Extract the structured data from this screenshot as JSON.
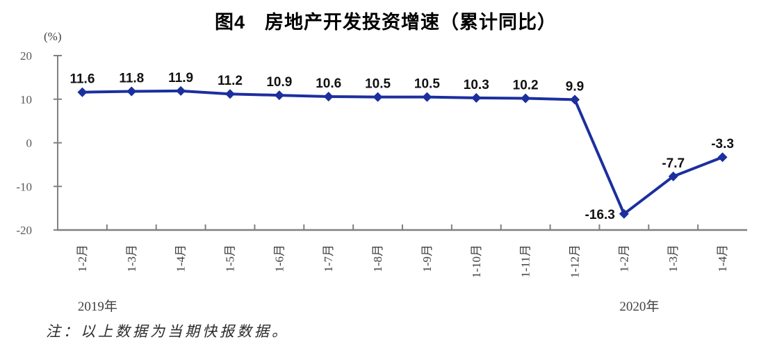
{
  "chart_data": {
    "type": "line",
    "title": "图4　房地产开发投资增速（累计同比）",
    "unit_label": "(%)",
    "categories": [
      "1-2月",
      "1-3月",
      "1-4月",
      "1-5月",
      "1-6月",
      "1-7月",
      "1-8月",
      "1-9月",
      "1-10月",
      "1-11月",
      "1-12月",
      "1-2月",
      "1-3月",
      "1-4月"
    ],
    "values": [
      11.6,
      11.8,
      11.9,
      11.2,
      10.9,
      10.6,
      10.5,
      10.5,
      10.3,
      10.2,
      9.9,
      -16.3,
      -7.7,
      -3.3
    ],
    "data_labels": [
      "11.6",
      "11.8",
      "11.9",
      "11.2",
      "10.9",
      "10.6",
      "10.5",
      "10.5",
      "10.3",
      "10.2",
      "9.9",
      "-16.3",
      "-7.7",
      "-3.3"
    ],
    "y_ticks": [
      20,
      10,
      0,
      -10,
      -20
    ],
    "ylim": [
      -20,
      20
    ],
    "grid": false,
    "legend": false,
    "year_labels": [
      {
        "text": "2019年",
        "index": 0
      },
      {
        "text": "2020年",
        "index": 11
      }
    ],
    "colors": {
      "line": "#1B2F9E",
      "axis": "#808080",
      "y_tick_label": "#595959",
      "x_tick_label": "#404040",
      "data_label": "#111111"
    }
  },
  "note": "注：以上数据为当期快报数据。"
}
